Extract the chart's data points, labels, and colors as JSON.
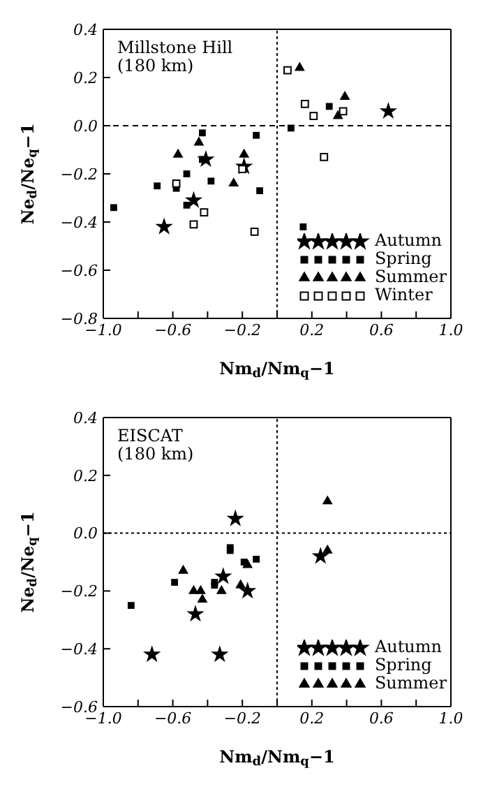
{
  "chart_data": [
    {
      "type": "scatter",
      "title": "Millstone Hill",
      "subtitle": "(180 km)",
      "xlabel": "Nm$_{d}$/Nm$_{q}$−1",
      "ylabel": "Ne$_{d}$/Ne$_{q}$−1",
      "xlim": [
        -1.0,
        1.0
      ],
      "ylim": [
        -0.8,
        0.4
      ],
      "xticks": [
        {
          "value": -1.0,
          "label": "−1.0"
        },
        {
          "value": -0.8,
          "label": null
        },
        {
          "value": -0.6,
          "label": "−0.6"
        },
        {
          "value": -0.4,
          "label": null
        },
        {
          "value": -0.2,
          "label": "−0.2"
        },
        {
          "value": 0,
          "label": null
        },
        {
          "value": 0.2,
          "label": "0.2"
        },
        {
          "value": 0.4,
          "label": null
        },
        {
          "value": 0.6,
          "label": "0.6"
        },
        {
          "value": 0.8,
          "label": null
        },
        {
          "value": 1.0,
          "label": "1.0"
        }
      ],
      "yticks": [
        {
          "value": -0.8,
          "label": "−0.8"
        },
        {
          "value": -0.6,
          "label": "−0.6"
        },
        {
          "value": -0.4,
          "label": "−0.4"
        },
        {
          "value": -0.2,
          "label": "−0.2"
        },
        {
          "value": 0,
          "label": "0.0"
        },
        {
          "value": 0.2,
          "label": "0.2"
        },
        {
          "value": 0.4,
          "label": "0.4"
        }
      ],
      "ref_lines": [
        {
          "axis": "x",
          "value": 0,
          "line_style": "dotted",
          "color": "#000000"
        },
        {
          "axis": "y",
          "value": 0,
          "line_style": "dashed",
          "color": "#000000"
        }
      ],
      "legend": "bottom right",
      "series": [
        {
          "name": "Autumn",
          "marker": "star",
          "color": "#000000",
          "x": [
            0.64,
            -0.41,
            -0.48,
            -0.65,
            -0.19
          ],
          "values": [
            0.06,
            -0.14,
            -0.31,
            -0.42,
            -0.17
          ]
        },
        {
          "name": "Spring",
          "marker": "square",
          "color": "#000000",
          "x": [
            -0.43,
            -0.12,
            0.08,
            0.3,
            -0.43,
            -0.52,
            -0.69,
            -0.58,
            -0.38,
            -0.1,
            -0.52,
            -0.94,
            0.15
          ],
          "values": [
            -0.03,
            -0.04,
            -0.01,
            0.08,
            -0.14,
            -0.2,
            -0.25,
            -0.26,
            -0.23,
            -0.27,
            -0.33,
            -0.34,
            -0.42
          ]
        },
        {
          "name": "Summer",
          "marker": "triangle",
          "color": "#000000",
          "x": [
            0.13,
            0.39,
            0.35,
            -0.57,
            -0.45,
            -0.19,
            -0.25
          ],
          "values": [
            0.24,
            0.12,
            0.04,
            -0.12,
            -0.07,
            -0.12,
            -0.24
          ]
        },
        {
          "name": "Winter",
          "marker": "square",
          "color": "#ffffff",
          "x": [
            0.06,
            0.16,
            0.21,
            0.38,
            0.27,
            -0.58,
            -0.2,
            -0.48,
            -0.42,
            -0.13
          ],
          "values": [
            0.23,
            0.09,
            0.04,
            0.06,
            -0.13,
            -0.24,
            -0.18,
            -0.41,
            -0.36,
            -0.44
          ]
        }
      ]
    },
    {
      "type": "scatter",
      "title": "EISCAT",
      "subtitle": "(180 km)",
      "xlabel": "Nm$_{d}$/Nm$_{q}$−1",
      "ylabel": "Ne$_{d}$/Ne$_{q}$−1",
      "xlim": [
        -1.0,
        1.0
      ],
      "ylim": [
        -0.6,
        0.4
      ],
      "xticks": [
        {
          "value": -1.0,
          "label": "−1.0"
        },
        {
          "value": -0.8,
          "label": null
        },
        {
          "value": -0.6,
          "label": "−0.6"
        },
        {
          "value": -0.4,
          "label": null
        },
        {
          "value": -0.2,
          "label": "−0.2"
        },
        {
          "value": 0,
          "label": null
        },
        {
          "value": 0.2,
          "label": "0.2"
        },
        {
          "value": 0.4,
          "label": null
        },
        {
          "value": 0.6,
          "label": "0.6"
        },
        {
          "value": 0.8,
          "label": null
        },
        {
          "value": 1.0,
          "label": "1.0"
        }
      ],
      "yticks": [
        {
          "value": -0.6,
          "label": "−0.6"
        },
        {
          "value": -0.4,
          "label": "−0.4"
        },
        {
          "value": -0.2,
          "label": "−0.2"
        },
        {
          "value": 0,
          "label": "0.0"
        },
        {
          "value": 0.2,
          "label": "0.2"
        },
        {
          "value": 0.4,
          "label": "0.4"
        }
      ],
      "ref_lines": [
        {
          "axis": "x",
          "value": 0,
          "line_style": "dotted",
          "color": "#000000"
        },
        {
          "axis": "y",
          "value": 0,
          "line_style": "dotted",
          "color": "#000000"
        }
      ],
      "legend": "bottom right",
      "series": [
        {
          "name": "Autumn",
          "marker": "star",
          "color": "#000000",
          "x": [
            -0.24,
            0.25,
            -0.31,
            -0.17,
            -0.47,
            -0.72,
            -0.33
          ],
          "values": [
            0.05,
            -0.08,
            -0.15,
            -0.2,
            -0.28,
            -0.42,
            -0.42
          ]
        },
        {
          "name": "Spring",
          "marker": "square",
          "color": "#000000",
          "x": [
            -0.27,
            -0.27,
            -0.19,
            -0.12,
            -0.59,
            -0.36,
            -0.36,
            -0.84
          ],
          "values": [
            -0.05,
            -0.06,
            -0.1,
            -0.09,
            -0.17,
            -0.17,
            -0.18,
            -0.25
          ]
        },
        {
          "name": "Summer",
          "marker": "triangle",
          "color": "#000000",
          "x": [
            0.29,
            0.29,
            -0.54,
            -0.48,
            -0.44,
            -0.43,
            -0.32,
            -0.21,
            -0.17
          ],
          "values": [
            0.11,
            -0.06,
            -0.13,
            -0.2,
            -0.2,
            -0.23,
            -0.2,
            -0.18,
            -0.11
          ]
        }
      ]
    }
  ]
}
